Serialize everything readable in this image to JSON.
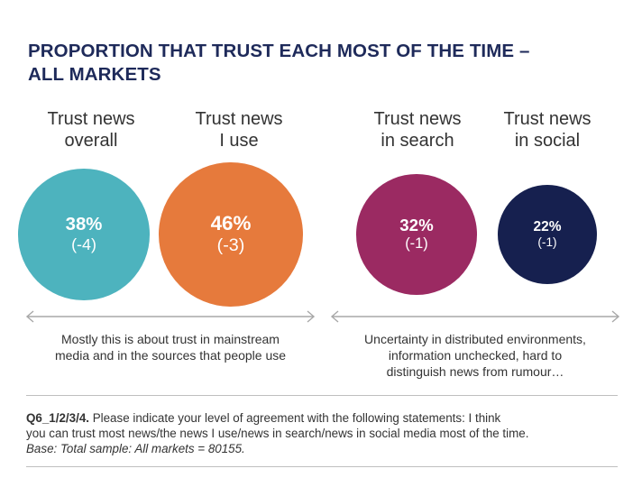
{
  "title_lines": [
    "PROPORTION THAT TRUST EACH MOST OF THE TIME –",
    "ALL MARKETS"
  ],
  "colors": {
    "title": "#1e2a5a",
    "overall": "#4db3be",
    "i_use": "#e67a3c",
    "search": "#9b2a62",
    "social": "#16204f",
    "arrow": "#a8a8a8"
  },
  "chart_data": {
    "type": "bubble",
    "title": "PROPORTION THAT TRUST EACH MOST OF THE TIME – ALL MARKETS",
    "items": [
      {
        "label_lines": [
          "Trust news",
          "overall"
        ],
        "value": 38,
        "value_label": "38%",
        "change": -4,
        "change_label": "(-4)",
        "color": "#4db3be"
      },
      {
        "label_lines": [
          "Trust news",
          "I use"
        ],
        "value": 46,
        "value_label": "46%",
        "change": -3,
        "change_label": "(-3)",
        "color": "#e67a3c"
      },
      {
        "label_lines": [
          "Trust news",
          "in search"
        ],
        "value": 32,
        "value_label": "32%",
        "change": -1,
        "change_label": "(-1)",
        "color": "#9b2a62"
      },
      {
        "label_lines": [
          "Trust news",
          "in social"
        ],
        "value": 22,
        "value_label": "22%",
        "change": -1,
        "change_label": "(-1)",
        "color": "#16204f"
      }
    ]
  },
  "notes": {
    "left_lines": [
      "Mostly this is about trust in mainstream",
      "media and in the sources that people use"
    ],
    "right_lines": [
      "Uncertainty in distributed environments,",
      "information unchecked, hard to",
      "distinguish news from rumour…"
    ]
  },
  "footnote": {
    "question_id": "Q6_1/2/3/4.",
    "line1_rest": " Please indicate your level of agreement with the following statements: I think",
    "line2": "you can trust most news/the news I use/news in search/news in social media most of the time.",
    "base": "Base: Total sample: All markets = 80155."
  }
}
